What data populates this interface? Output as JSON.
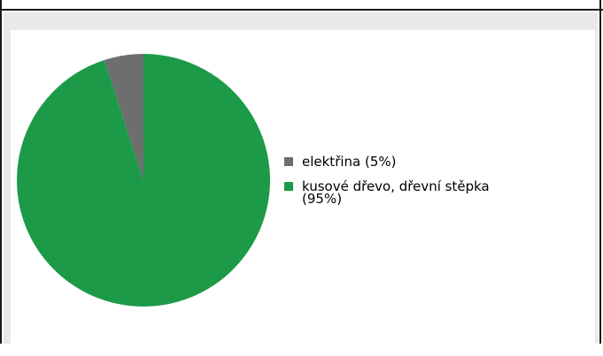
{
  "chart_data": {
    "type": "pie",
    "title": "",
    "slices": [
      {
        "label": "elektřina (5%)",
        "value": 5,
        "color": "#6e6e6e"
      },
      {
        "label": "kusové dřevo, dřevní stěpka (95%)",
        "label_lines": [
          "kusové dřevo, dřevní stěpka",
          "(95%)"
        ],
        "value": 95,
        "color": "#1c9a48"
      }
    ],
    "legend_position": "right"
  }
}
